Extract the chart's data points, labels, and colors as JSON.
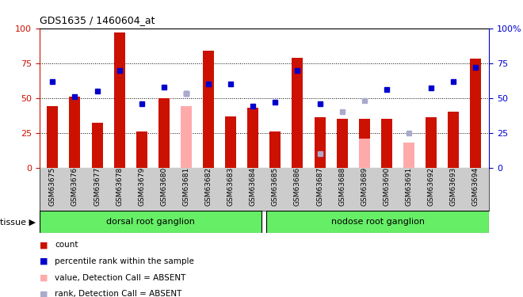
{
  "title": "GDS1635 / 1460604_at",
  "samples": [
    "GSM63675",
    "GSM63676",
    "GSM63677",
    "GSM63678",
    "GSM63679",
    "GSM63680",
    "GSM63681",
    "GSM63682",
    "GSM63683",
    "GSM63684",
    "GSM63685",
    "GSM63686",
    "GSM63687",
    "GSM63688",
    "GSM63689",
    "GSM63690",
    "GSM63691",
    "GSM63692",
    "GSM63693",
    "GSM63694"
  ],
  "bar_values": [
    44,
    51,
    32,
    97,
    26,
    50,
    null,
    84,
    37,
    43,
    26,
    79,
    36,
    35,
    35,
    35,
    null,
    36,
    40,
    78
  ],
  "bar_absent": [
    null,
    null,
    null,
    null,
    null,
    null,
    44,
    null,
    null,
    null,
    null,
    null,
    null,
    null,
    21,
    null,
    18,
    null,
    null,
    null
  ],
  "rank_values": [
    62,
    51,
    55,
    70,
    46,
    58,
    53,
    60,
    60,
    44,
    47,
    70,
    46,
    null,
    null,
    56,
    null,
    57,
    62,
    72
  ],
  "rank_absent": [
    null,
    null,
    null,
    null,
    null,
    null,
    53,
    null,
    null,
    null,
    null,
    null,
    10,
    40,
    48,
    null,
    25,
    null,
    null,
    null
  ],
  "bar_color": "#cc1100",
  "bar_absent_color": "#ffaaaa",
  "rank_color": "#0000cc",
  "rank_absent_color": "#aaaacc",
  "ylim": [
    0,
    100
  ],
  "yticks": [
    0,
    25,
    50,
    75,
    100
  ],
  "tissue_color": "#66ee66",
  "tissue_label": "tissue ▶",
  "left_axis_color": "#cc1100",
  "right_axis_color": "#0000cc",
  "bar_width": 0.5,
  "rank_marker_size": 5,
  "n_drg": 10,
  "n_nrg": 10,
  "legend_items": [
    {
      "label": "count",
      "color": "#cc1100"
    },
    {
      "label": "percentile rank within the sample",
      "color": "#0000cc"
    },
    {
      "label": "value, Detection Call = ABSENT",
      "color": "#ffaaaa"
    },
    {
      "label": "rank, Detection Call = ABSENT",
      "color": "#aaaacc"
    }
  ]
}
